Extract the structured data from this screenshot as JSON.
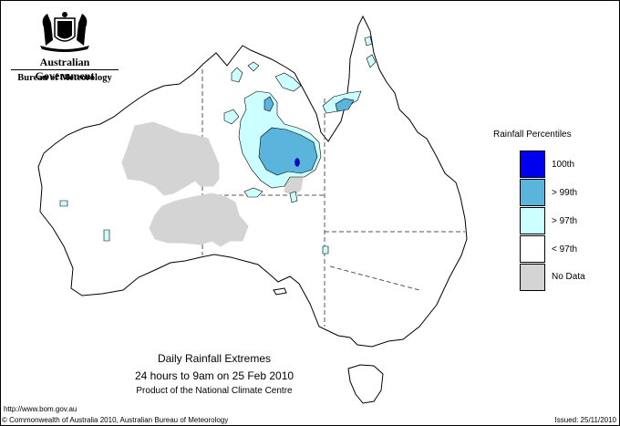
{
  "header": {
    "government": "Australian Government",
    "bureau": "Bureau of Meteorology"
  },
  "legend": {
    "title": "Rainfall Percentiles",
    "items": [
      {
        "label": "100th",
        "color": "#0000ee"
      },
      {
        "label": "> 99th",
        "color": "#5ab4dc"
      },
      {
        "label": "> 97th",
        "color": "#ccffff"
      },
      {
        "label": "< 97th",
        "color": "#ffffff"
      },
      {
        "label": "No Data",
        "color": "#d4d4d4"
      }
    ]
  },
  "caption": {
    "line1": "Daily Rainfall Extremes",
    "line2": "24 hours to 9am on 25 Feb 2010",
    "line3": "Product of the National Climate Centre"
  },
  "footer": {
    "url": "http://www.bom.gov.au",
    "copyright": "© Commonwealth of Australia 2010, Australian Bureau of Meteorology",
    "issued": "Issued: 25/11/2010"
  }
}
